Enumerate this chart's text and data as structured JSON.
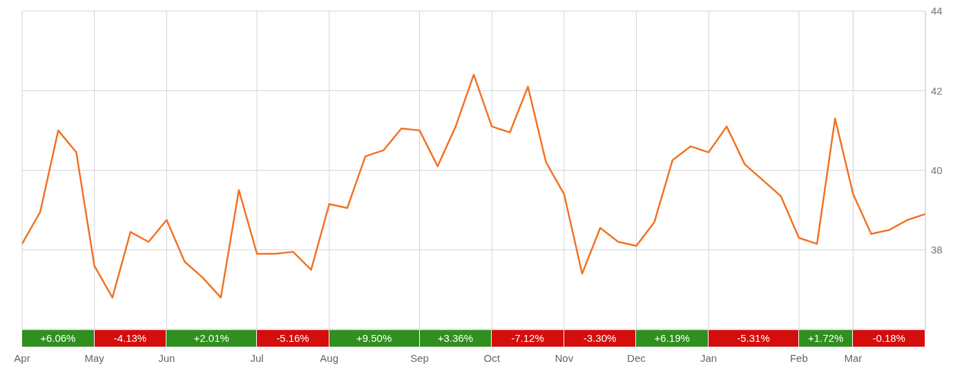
{
  "chart_data": {
    "type": "line",
    "categories": [
      "Apr",
      null,
      null,
      null,
      "May",
      null,
      null,
      null,
      "Jun",
      null,
      null,
      null,
      null,
      "Jul",
      null,
      null,
      null,
      "Aug",
      null,
      null,
      null,
      null,
      "Sep",
      null,
      null,
      null,
      "Oct",
      null,
      null,
      null,
      "Nov",
      null,
      null,
      null,
      "Dec",
      null,
      null,
      null,
      "Jan",
      null,
      null,
      null,
      null,
      "Feb",
      null,
      null,
      "Mar",
      null,
      null,
      null,
      null
    ],
    "series": [
      {
        "color": "#f37021",
        "values": [
          38.15,
          38.95,
          41.0,
          40.45,
          37.6,
          36.8,
          38.45,
          38.2,
          38.75,
          37.7,
          37.3,
          36.8,
          39.5,
          37.9,
          37.9,
          37.95,
          37.5,
          39.15,
          39.05,
          40.35,
          40.5,
          41.05,
          41.0,
          40.1,
          41.1,
          42.4,
          41.1,
          40.95,
          42.1,
          40.2,
          39.4,
          37.4,
          38.55,
          38.2,
          38.1,
          38.7,
          40.25,
          40.6,
          40.45,
          41.1,
          40.15,
          39.75,
          39.35,
          38.3,
          38.15,
          41.3,
          39.4,
          38.4,
          38.5,
          38.75,
          38.9
        ]
      }
    ],
    "ylim": [
      36,
      44
    ],
    "yticks": [
      38,
      40,
      42,
      44
    ],
    "grid": true,
    "legend": false,
    "marker": "none",
    "line_style": "solid",
    "annotations": [
      "+6.06%",
      "-4.13%",
      "+2.01%",
      "-5.16%",
      "+9.50%",
      "+3.36%",
      "-7.12%",
      "-3.30%",
      "+6.19%",
      "-5.31%",
      "+1.72%",
      "-0.18%"
    ]
  }
}
